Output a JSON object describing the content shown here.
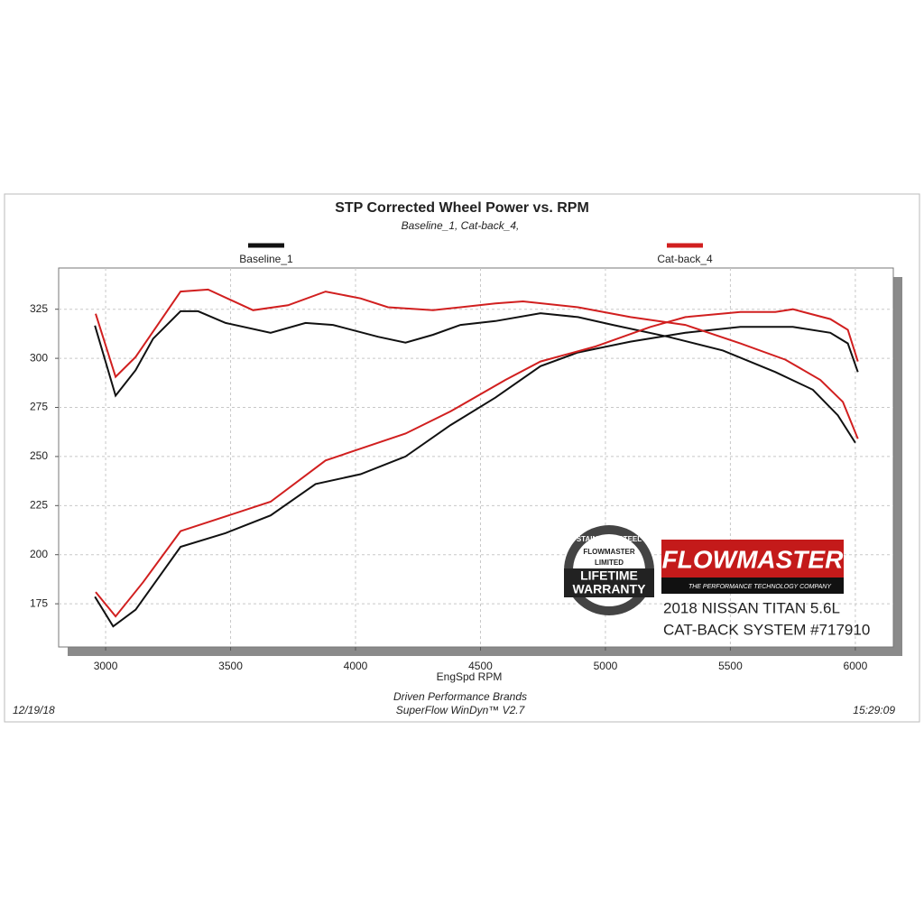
{
  "chart_data": {
    "type": "line",
    "title": "STP Corrected Wheel Power vs. RPM",
    "subtitle": "Baseline_1, Cat-back_4,",
    "x_label": "EngSpd  RPM",
    "xlim": [
      2812,
      6152
    ],
    "ylim": [
      153,
      346
    ],
    "xticks": [
      3000,
      3500,
      4000,
      4500,
      5000,
      5500,
      6000
    ],
    "yticks": [
      175,
      200,
      225,
      250,
      275,
      300,
      325
    ],
    "grid": true,
    "series": [
      {
        "name": "Baseline_1",
        "color": "#111111",
        "curves": [
          {
            "x": [
              2957,
              3040,
              3120,
              3190,
              3300,
              3370,
              3480,
              3660,
              3800,
              3910,
              4090,
              4200,
              4310,
              4420,
              4560,
              4740,
              4890,
              5030,
              5250,
              5470,
              5680,
              5830,
              5930,
              6000
            ],
            "values": [
              316.7,
              281,
              294,
              310,
              324,
              324,
              318,
              313,
              318,
              317,
              311,
              308,
              312,
              317,
              319,
              323,
              321,
              317,
              311,
              304,
              293,
              284,
              271,
              257
            ]
          },
          {
            "x": [
              2957,
              3030,
              3120,
              3300,
              3480,
              3660,
              3840,
              4020,
              4200,
              4380,
              4560,
              4740,
              4890,
              5100,
              5320,
              5540,
              5750,
              5900,
              5970,
              6010
            ],
            "values": [
              178.6,
              163.5,
              172,
              204,
              211,
              220,
              236,
              241,
              250,
              266,
              280,
              296,
              303,
              308.5,
              313,
              316,
              316,
              313,
              307.6,
              293
            ]
          }
        ]
      },
      {
        "name": "Cat-back_4",
        "color": "#d11f1f",
        "curves": [
          {
            "x": [
              2960,
              3040,
              3120,
              3300,
              3410,
              3590,
              3730,
              3880,
              4020,
              4130,
              4310,
              4560,
              4670,
              4890,
              5100,
              5320,
              5540,
              5720,
              5860,
              5950,
              6010
            ],
            "values": [
              322.7,
              290.6,
              300.7,
              334,
              335,
              324.5,
              327,
              334,
              330.5,
              326,
              324.5,
              328,
              329,
              326,
              321,
              317,
              307.6,
              299.3,
              289,
              277.8,
              259
            ]
          },
          {
            "x": [
              2960,
              3040,
              3150,
              3300,
              3480,
              3660,
              3880,
              4020,
              4200,
              4380,
              4600,
              4740,
              4960,
              5180,
              5320,
              5540,
              5680,
              5750,
              5900,
              5970,
              6010
            ],
            "values": [
              181,
              168.6,
              186,
              212,
              219.5,
              227,
              248,
              254,
              261.7,
              273,
              289,
              298.4,
              306,
              316,
              321,
              323.6,
              323.6,
              325,
              320,
              314.5,
              298.4
            ]
          }
        ]
      }
    ],
    "footer": {
      "date": "12/19/18",
      "company": "Driven Performance Brands",
      "software": "SuperFlow WinDyn™  V2.7",
      "time": "15:29:09"
    },
    "logo": {
      "brand": "FLOWMASTER",
      "tagline": "THE PERFORMANCE TECHNOLOGY COMPANY",
      "line1": "2018 NISSAN TITAN 5.6L",
      "line2": "CAT-BACK SYSTEM #717910"
    },
    "badge": {
      "top": "STAINLESS STEEL",
      "brand": "FLOWMASTER",
      "limited": "LIMITED",
      "line1": "LIFETIME",
      "line2": "WARRANTY"
    }
  }
}
